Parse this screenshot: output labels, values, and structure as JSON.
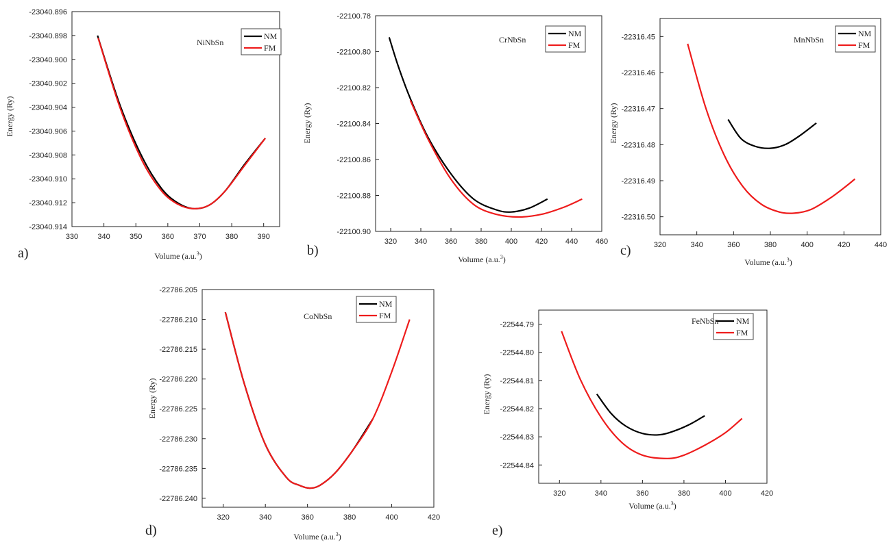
{
  "figure": {
    "ylabel": "Energy (Ry)",
    "xlabel": "Volume (a.u.",
    "xlabel_sup": "3",
    "xlabel_close": ")",
    "legend": [
      "NM",
      "FM"
    ]
  },
  "chart_data": [
    {
      "panel": "a)",
      "title": "NiNbSn",
      "type": "line",
      "xlim": [
        330,
        395
      ],
      "ylim": [
        -23040.914,
        -23040.896
      ],
      "xticks": [
        330,
        340,
        350,
        360,
        370,
        380,
        390
      ],
      "yticks": [
        -23040.896,
        -23040.898,
        -23040.9,
        -23040.902,
        -23040.904,
        -23040.906,
        -23040.908,
        -23040.91,
        -23040.912,
        -23040.914
      ],
      "series": [
        {
          "name": "NM",
          "color": "#000000",
          "x": [
            338,
            345,
            352,
            358,
            363,
            368,
            373,
            378,
            384,
            390.5
          ],
          "y": [
            -23040.898,
            -23040.9038,
            -23040.9082,
            -23040.9108,
            -23040.912,
            -23040.9125,
            -23040.9122,
            -23040.911,
            -23040.9088,
            -23040.9066
          ]
        },
        {
          "name": "FM",
          "color": "#ee1c1c",
          "x": [
            338.2,
            345,
            352,
            358,
            363,
            368,
            373,
            378,
            384,
            390.5
          ],
          "y": [
            -23040.8982,
            -23040.904,
            -23040.9085,
            -23040.911,
            -23040.9121,
            -23040.9125,
            -23040.9122,
            -23040.911,
            -23040.9089,
            -23040.9066
          ]
        }
      ]
    },
    {
      "panel": "b)",
      "title": "CrNbSn",
      "type": "line",
      "xlim": [
        310,
        460
      ],
      "ylim": [
        -22100.9,
        -22100.78
      ],
      "xticks": [
        320,
        340,
        360,
        380,
        400,
        420,
        440,
        460
      ],
      "yticks": [
        -22100.78,
        -22100.8,
        -22100.82,
        -22100.84,
        -22100.86,
        -22100.88,
        -22100.9
      ],
      "series": [
        {
          "name": "NM",
          "color": "#000000",
          "x": [
            319,
            325,
            333,
            345,
            360,
            375,
            390,
            400,
            412,
            424
          ],
          "y": [
            -22100.792,
            -22100.808,
            -22100.826,
            -22100.848,
            -22100.868,
            -22100.882,
            -22100.888,
            -22100.8892,
            -22100.887,
            -22100.882
          ]
        },
        {
          "name": "FM",
          "color": "#ee1c1c",
          "x": [
            333,
            345,
            360,
            375,
            390,
            405,
            420,
            435,
            447
          ],
          "y": [
            -22100.827,
            -22100.849,
            -22100.871,
            -22100.885,
            -22100.8905,
            -22100.892,
            -22100.8905,
            -22100.8865,
            -22100.882
          ]
        }
      ]
    },
    {
      "panel": "c)",
      "title": "MnNbSn",
      "type": "line",
      "xlim": [
        320,
        440
      ],
      "ylim": [
        -22316.505,
        -22316.445
      ],
      "xticks": [
        320,
        340,
        360,
        380,
        400,
        420,
        440
      ],
      "yticks": [
        -22316.45,
        -22316.46,
        -22316.47,
        -22316.48,
        -22316.49,
        -22316.5
      ],
      "series": [
        {
          "name": "NM",
          "color": "#000000",
          "x": [
            357,
            364,
            372,
            380,
            388,
            396,
            405
          ],
          "y": [
            -22316.473,
            -22316.4783,
            -22316.4805,
            -22316.481,
            -22316.48,
            -22316.4775,
            -22316.474
          ]
        },
        {
          "name": "FM",
          "color": "#ee1c1c",
          "x": [
            335,
            345,
            355,
            365,
            375,
            385,
            393,
            402,
            412,
            420,
            426
          ],
          "y": [
            -22316.452,
            -22316.47,
            -22316.483,
            -22316.4916,
            -22316.4965,
            -22316.4987,
            -22316.499,
            -22316.498,
            -22316.495,
            -22316.492,
            -22316.4895
          ]
        }
      ]
    },
    {
      "panel": "d)",
      "title": "CoNbSn",
      "type": "line",
      "xlim": [
        310,
        420
      ],
      "ylim": [
        -22786.2415,
        -22786.205
      ],
      "xticks": [
        320,
        340,
        360,
        380,
        400,
        420
      ],
      "yticks": [
        -22786.205,
        -22786.21,
        -22786.215,
        -22786.22,
        -22786.225,
        -22786.23,
        -22786.235,
        -22786.24
      ],
      "series": [
        {
          "name": "NM",
          "color": "#000000",
          "x": [
            321,
            330,
            340,
            350,
            356,
            361,
            366,
            373,
            381,
            391
          ],
          "y": [
            -22786.2088,
            -22786.2208,
            -22786.231,
            -22786.2365,
            -22786.2378,
            -22786.2383,
            -22786.2378,
            -22786.2358,
            -22786.2322,
            -22786.2267
          ]
        },
        {
          "name": "FM",
          "color": "#ee1c1c",
          "x": [
            321,
            330,
            340,
            350,
            356,
            361,
            366,
            373,
            381,
            391,
            400,
            408.5
          ],
          "y": [
            -22786.2088,
            -22786.2208,
            -22786.231,
            -22786.2365,
            -22786.2378,
            -22786.2383,
            -22786.2378,
            -22786.2358,
            -22786.2322,
            -22786.2267,
            -22786.2188,
            -22786.21
          ]
        }
      ]
    },
    {
      "panel": "e)",
      "title": "FeNbSn",
      "type": "line",
      "xlim": [
        310,
        420
      ],
      "ylim": [
        -22544.8465,
        -22544.785
      ],
      "xticks": [
        320,
        340,
        360,
        380,
        400,
        420
      ],
      "yticks": [
        -22544.79,
        -22544.8,
        -22544.81,
        -22544.82,
        -22544.83,
        -22544.84
      ],
      "series": [
        {
          "name": "NM",
          "color": "#000000",
          "x": [
            338,
            345,
            352,
            360,
            368,
            375,
            383,
            390
          ],
          "y": [
            -22544.8148,
            -22544.8218,
            -22544.8262,
            -22544.8288,
            -22544.8293,
            -22544.828,
            -22544.8255,
            -22544.8225
          ]
        },
        {
          "name": "FM",
          "color": "#ee1c1c",
          "x": [
            321,
            330,
            340,
            350,
            360,
            372,
            380,
            390,
            400,
            408
          ],
          "y": [
            -22544.7925,
            -22544.8095,
            -22544.823,
            -22544.832,
            -22544.8365,
            -22544.8377,
            -22544.8365,
            -22544.833,
            -22544.8285,
            -22544.8235
          ]
        }
      ]
    }
  ]
}
